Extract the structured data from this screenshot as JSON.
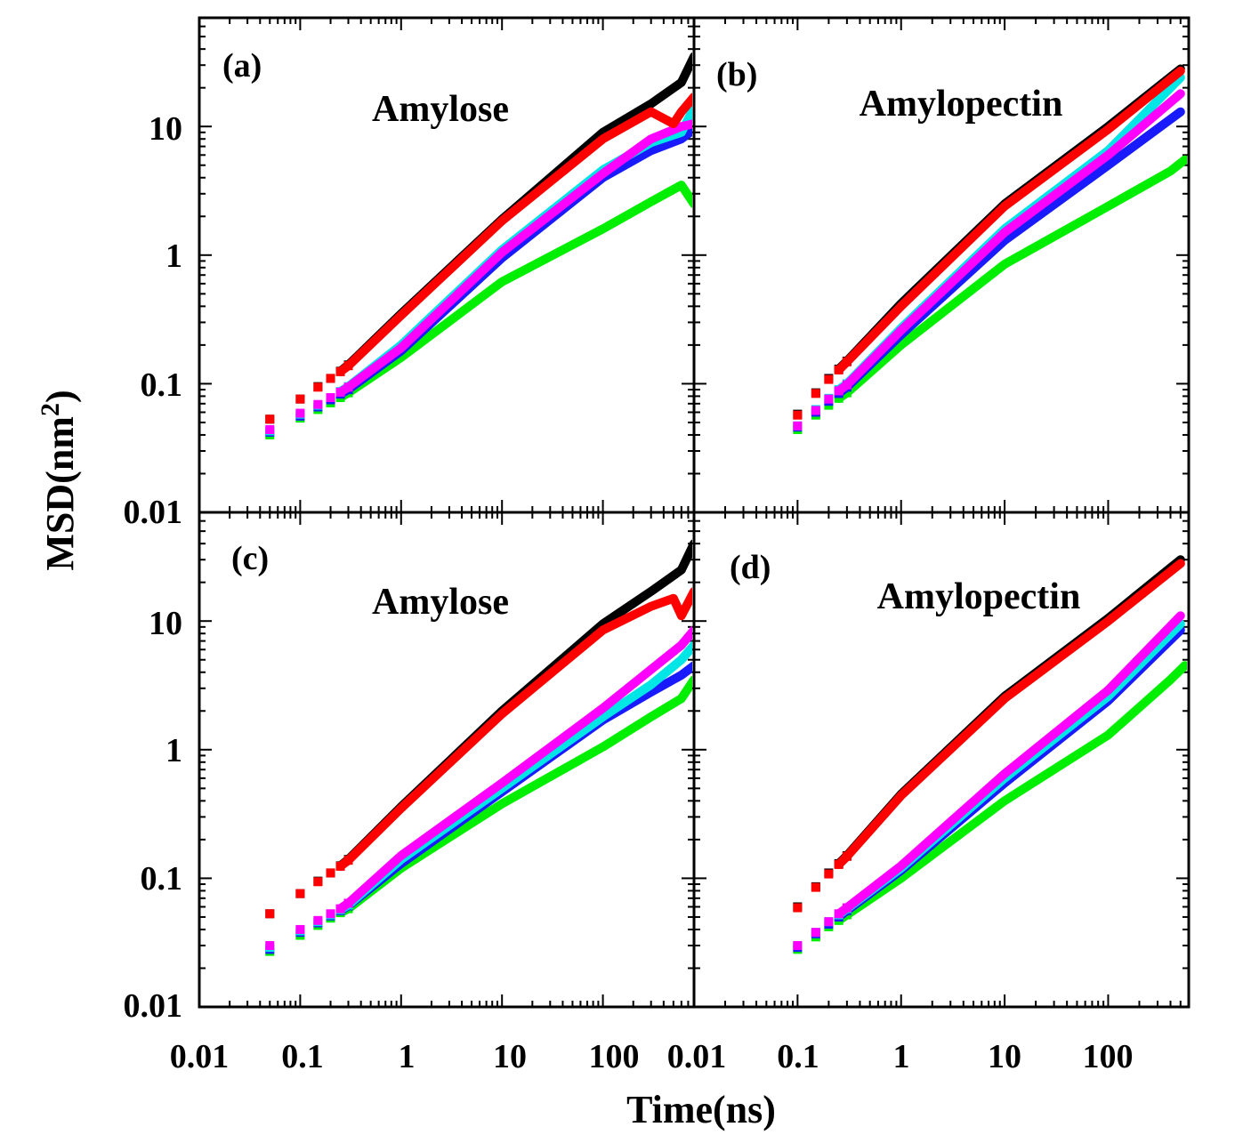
{
  "chart_data": [
    {
      "panel": "a",
      "tag": "(a)",
      "title": "Amylose",
      "type": "scatter",
      "xscale": "log",
      "yscale": "log",
      "xlim": [
        0.01,
        800
      ],
      "ylim": [
        0.01,
        70
      ],
      "series": [
        {
          "color": "#000000",
          "x": [
            0.05,
            0.1,
            0.15,
            0.2,
            0.25,
            0.3,
            1,
            10,
            100,
            300,
            600,
            800
          ],
          "y": [
            0.053,
            0.076,
            0.095,
            0.11,
            0.125,
            0.14,
            0.35,
            1.9,
            9,
            15,
            22,
            35
          ]
        },
        {
          "color": "#ff0000",
          "x": [
            0.05,
            0.1,
            0.15,
            0.2,
            0.25,
            0.3,
            1,
            10,
            100,
            300,
            500,
            600,
            800
          ],
          "y": [
            0.053,
            0.076,
            0.094,
            0.11,
            0.124,
            0.138,
            0.34,
            1.85,
            8,
            13,
            10.5,
            13,
            17
          ]
        },
        {
          "color": "#00e5e5",
          "x": [
            0.05,
            0.1,
            0.15,
            0.2,
            0.25,
            0.3,
            1,
            10,
            100,
            300,
            600,
            800
          ],
          "y": [
            0.043,
            0.058,
            0.068,
            0.078,
            0.087,
            0.095,
            0.2,
            1.1,
            4.6,
            7.5,
            9,
            14
          ]
        },
        {
          "color": "#ff00ff",
          "x": [
            0.05,
            0.1,
            0.15,
            0.2,
            0.25,
            0.3,
            1,
            10,
            100,
            300,
            600,
            800
          ],
          "y": [
            0.044,
            0.059,
            0.069,
            0.078,
            0.086,
            0.094,
            0.19,
            1.05,
            4.3,
            8,
            10,
            10.5
          ]
        },
        {
          "color": "#1a1aff",
          "x": [
            0.05,
            0.1,
            0.15,
            0.2,
            0.25,
            0.3,
            1,
            10,
            100,
            300,
            600,
            800
          ],
          "y": [
            0.042,
            0.056,
            0.066,
            0.075,
            0.083,
            0.09,
            0.18,
            0.95,
            4,
            6.5,
            8,
            9.5
          ]
        },
        {
          "color": "#00ee00",
          "x": [
            0.05,
            0.1,
            0.15,
            0.2,
            0.25,
            0.3,
            1,
            10,
            100,
            300,
            600,
            800
          ],
          "y": [
            0.04,
            0.054,
            0.063,
            0.071,
            0.078,
            0.085,
            0.16,
            0.62,
            1.6,
            2.6,
            3.5,
            2.5
          ]
        }
      ]
    },
    {
      "panel": "b",
      "tag": "(b)",
      "title": "Amylopectin",
      "type": "scatter",
      "xscale": "log",
      "yscale": "log",
      "xlim": [
        0.01,
        600
      ],
      "ylim": [
        0.01,
        70
      ],
      "series": [
        {
          "color": "#000000",
          "x": [
            0.1,
            0.15,
            0.2,
            0.25,
            0.3,
            1,
            10,
            100,
            500
          ],
          "y": [
            0.058,
            0.085,
            0.11,
            0.13,
            0.15,
            0.42,
            2.5,
            10,
            28
          ]
        },
        {
          "color": "#ff0000",
          "x": [
            0.1,
            0.15,
            0.2,
            0.25,
            0.3,
            1,
            10,
            100,
            500
          ],
          "y": [
            0.057,
            0.084,
            0.108,
            0.128,
            0.148,
            0.4,
            2.4,
            9.5,
            27
          ]
        },
        {
          "color": "#00e5e5",
          "x": [
            0.1,
            0.15,
            0.2,
            0.25,
            0.3,
            1,
            10,
            100,
            500
          ],
          "y": [
            0.047,
            0.063,
            0.077,
            0.09,
            0.1,
            0.27,
            1.6,
            6.5,
            24
          ]
        },
        {
          "color": "#ff00ff",
          "x": [
            0.1,
            0.15,
            0.2,
            0.25,
            0.3,
            1,
            10,
            100,
            500
          ],
          "y": [
            0.047,
            0.062,
            0.076,
            0.088,
            0.098,
            0.26,
            1.5,
            6,
            18
          ]
        },
        {
          "color": "#1a1aff",
          "x": [
            0.1,
            0.15,
            0.2,
            0.25,
            0.3,
            1,
            10,
            100,
            500
          ],
          "y": [
            0.046,
            0.06,
            0.073,
            0.084,
            0.094,
            0.24,
            1.3,
            5,
            13
          ]
        },
        {
          "color": "#00ee00",
          "x": [
            0.1,
            0.15,
            0.2,
            0.25,
            0.3,
            1,
            10,
            100,
            400,
            550
          ],
          "y": [
            0.044,
            0.057,
            0.068,
            0.077,
            0.085,
            0.2,
            0.85,
            2.4,
            4.5,
            5.5
          ]
        }
      ]
    },
    {
      "panel": "c",
      "tag": "(c)",
      "title": "Amylose",
      "type": "scatter",
      "xscale": "log",
      "yscale": "log",
      "xlim": [
        0.01,
        800
      ],
      "ylim": [
        0.01,
        70
      ],
      "series": [
        {
          "color": "#000000",
          "x": [
            0.05,
            0.1,
            0.15,
            0.2,
            0.25,
            0.3,
            1,
            10,
            100,
            300,
            600,
            800
          ],
          "y": [
            0.053,
            0.076,
            0.095,
            0.11,
            0.125,
            0.14,
            0.36,
            2,
            9.5,
            17,
            25,
            40
          ]
        },
        {
          "color": "#ff0000",
          "x": [
            0.05,
            0.1,
            0.15,
            0.2,
            0.25,
            0.3,
            1,
            10,
            100,
            300,
            500,
            600,
            800
          ],
          "y": [
            0.053,
            0.076,
            0.094,
            0.11,
            0.124,
            0.138,
            0.35,
            1.9,
            8.5,
            13,
            15,
            11,
            17
          ]
        },
        {
          "color": "#00e5e5",
          "x": [
            0.05,
            0.1,
            0.15,
            0.2,
            0.25,
            0.3,
            1,
            10,
            100,
            300,
            600,
            800
          ],
          "y": [
            0.029,
            0.039,
            0.046,
            0.052,
            0.057,
            0.062,
            0.14,
            0.5,
            1.8,
            3.2,
            5,
            6.5
          ]
        },
        {
          "color": "#ff00ff",
          "x": [
            0.05,
            0.1,
            0.15,
            0.2,
            0.25,
            0.3,
            1,
            10,
            100,
            300,
            600,
            800
          ],
          "y": [
            0.03,
            0.04,
            0.047,
            0.053,
            0.058,
            0.064,
            0.15,
            0.55,
            2.1,
            4.2,
            6.5,
            8.5
          ]
        },
        {
          "color": "#1a1aff",
          "x": [
            0.05,
            0.1,
            0.15,
            0.2,
            0.25,
            0.3,
            1,
            10,
            100,
            300,
            600,
            800
          ],
          "y": [
            0.028,
            0.038,
            0.045,
            0.051,
            0.056,
            0.061,
            0.13,
            0.47,
            1.7,
            2.8,
            3.8,
            4.5
          ]
        },
        {
          "color": "#00ee00",
          "x": [
            0.05,
            0.1,
            0.15,
            0.2,
            0.25,
            0.3,
            1,
            10,
            100,
            300,
            600,
            800
          ],
          "y": [
            0.027,
            0.036,
            0.043,
            0.049,
            0.054,
            0.058,
            0.12,
            0.38,
            1.05,
            1.8,
            2.5,
            3.5
          ]
        }
      ]
    },
    {
      "panel": "d",
      "tag": "(d)",
      "title": "Amylopectin",
      "type": "scatter",
      "xscale": "log",
      "yscale": "log",
      "xlim": [
        0.01,
        600
      ],
      "ylim": [
        0.01,
        70
      ],
      "series": [
        {
          "color": "#000000",
          "x": [
            0.1,
            0.15,
            0.2,
            0.25,
            0.3,
            1,
            10,
            100,
            500
          ],
          "y": [
            0.06,
            0.086,
            0.11,
            0.13,
            0.15,
            0.45,
            2.6,
            10.5,
            30
          ]
        },
        {
          "color": "#ff0000",
          "x": [
            0.1,
            0.15,
            0.2,
            0.25,
            0.3,
            1,
            10,
            100,
            500
          ],
          "y": [
            0.059,
            0.085,
            0.108,
            0.128,
            0.148,
            0.44,
            2.5,
            10,
            28
          ]
        },
        {
          "color": "#00e5e5",
          "x": [
            0.1,
            0.15,
            0.2,
            0.25,
            0.3,
            1,
            10,
            100,
            500
          ],
          "y": [
            0.03,
            0.038,
            0.046,
            0.052,
            0.058,
            0.12,
            0.6,
            2.6,
            9.5
          ]
        },
        {
          "color": "#ff00ff",
          "x": [
            0.1,
            0.15,
            0.2,
            0.25,
            0.3,
            1,
            10,
            100,
            500
          ],
          "y": [
            0.03,
            0.038,
            0.046,
            0.053,
            0.059,
            0.125,
            0.65,
            2.9,
            11
          ]
        },
        {
          "color": "#1a1aff",
          "x": [
            0.1,
            0.15,
            0.2,
            0.25,
            0.3,
            1,
            10,
            100,
            500
          ],
          "y": [
            0.029,
            0.037,
            0.044,
            0.05,
            0.056,
            0.115,
            0.55,
            2.4,
            8.5
          ]
        },
        {
          "color": "#00ee00",
          "x": [
            0.1,
            0.15,
            0.2,
            0.25,
            0.3,
            1,
            10,
            100,
            400,
            550
          ],
          "y": [
            0.028,
            0.035,
            0.042,
            0.047,
            0.052,
            0.1,
            0.4,
            1.3,
            3.5,
            4.5
          ]
        }
      ]
    }
  ],
  "axes": {
    "xlabel": "Time(ns)",
    "ylabel": "MSD(nm",
    "ylabel_sup": "2",
    "ylabel_close": ")",
    "y_ticks": [
      "0.01",
      "0.1",
      "1",
      "10"
    ],
    "x_ticks_left": [
      "0.01",
      "0.1",
      "1",
      "10",
      "100"
    ],
    "x_ticks_right": [
      "0.01",
      "0.1",
      "1",
      "10",
      "100"
    ]
  }
}
